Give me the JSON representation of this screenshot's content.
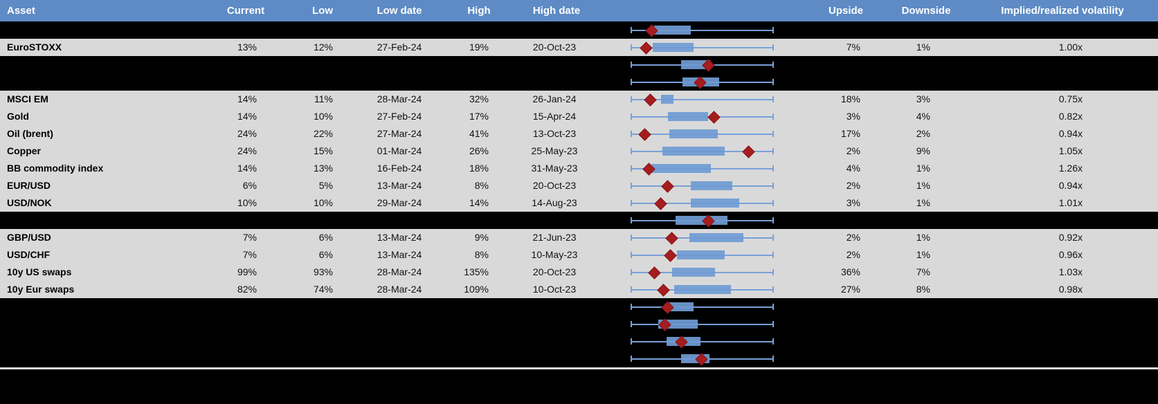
{
  "colors": {
    "header_bg": "#5E8BC5",
    "header_text": "#FFFFFF",
    "row_bg": "#D9D9D9",
    "hidden_row_bg": "#000000",
    "box_fill": "#6F9BD3",
    "whisker": "#78A1D8",
    "marker_fill": "#A51D1E",
    "marker_border": "#8A1516"
  },
  "chart_data": {
    "type": "table",
    "columns": [
      "Asset",
      "Current",
      "Low",
      "Low date",
      "High",
      "High date",
      "Upside",
      "Downside",
      "Implied/realized volatility"
    ],
    "boxplot_legend": "whisker = full range (0 to 1 normalized), box = inner range, diamond = current level marker",
    "rows": [
      {
        "hidden": true,
        "asset": "",
        "current": "",
        "low": "",
        "low_date": "",
        "high": "",
        "high_date": "",
        "upside": "",
        "downside": "",
        "vol": "",
        "box": {
          "lo": 0,
          "q1": 0.16,
          "marker": 0.14,
          "q3": 0.42,
          "hi": 1
        }
      },
      {
        "hidden": false,
        "asset": "EuroSTOXX",
        "current": "13%",
        "low": "12%",
        "low_date": "27-Feb-24",
        "high": "19%",
        "high_date": "20-Oct-23",
        "upside": "7%",
        "downside": "1%",
        "vol": "1.00x",
        "box": {
          "lo": 0,
          "q1": 0.15,
          "marker": 0.1,
          "q3": 0.44,
          "hi": 1
        }
      },
      {
        "hidden": true,
        "asset": "",
        "current": "",
        "low": "",
        "low_date": "",
        "high": "",
        "high_date": "",
        "upside": "",
        "downside": "",
        "vol": "",
        "box": {
          "lo": 0,
          "q1": 0.35,
          "marker": 0.54,
          "q3": 0.56,
          "hi": 1
        }
      },
      {
        "hidden": true,
        "asset": "",
        "current": "",
        "low": "",
        "low_date": "",
        "high": "",
        "high_date": "",
        "upside": "",
        "downside": "",
        "vol": "",
        "box": {
          "lo": 0,
          "q1": 0.36,
          "marker": 0.48,
          "q3": 0.62,
          "hi": 1
        }
      },
      {
        "hidden": false,
        "asset": "MSCI EM",
        "current": "14%",
        "low": "11%",
        "low_date": "28-Mar-24",
        "high": "32%",
        "high_date": "26-Jan-24",
        "upside": "18%",
        "downside": "3%",
        "vol": "0.75x",
        "box": {
          "lo": 0,
          "q1": 0.21,
          "marker": 0.13,
          "q3": 0.3,
          "hi": 1
        }
      },
      {
        "hidden": false,
        "asset": "Gold",
        "current": "14%",
        "low": "10%",
        "low_date": "27-Feb-24",
        "high": "17%",
        "high_date": "15-Apr-24",
        "upside": "3%",
        "downside": "4%",
        "vol": "0.82x",
        "box": {
          "lo": 0,
          "q1": 0.26,
          "marker": 0.58,
          "q3": 0.54,
          "hi": 1
        }
      },
      {
        "hidden": false,
        "asset": "Oil (brent)",
        "current": "24%",
        "low": "22%",
        "low_date": "27-Mar-24",
        "high": "41%",
        "high_date": "13-Oct-23",
        "upside": "17%",
        "downside": "2%",
        "vol": "0.94x",
        "box": {
          "lo": 0,
          "q1": 0.27,
          "marker": 0.09,
          "q3": 0.61,
          "hi": 1
        }
      },
      {
        "hidden": false,
        "asset": "Copper",
        "current": "24%",
        "low": "15%",
        "low_date": "01-Mar-24",
        "high": "26%",
        "high_date": "25-May-23",
        "upside": "2%",
        "downside": "9%",
        "vol": "1.05x",
        "box": {
          "lo": 0,
          "q1": 0.22,
          "marker": 0.82,
          "q3": 0.66,
          "hi": 1
        }
      },
      {
        "hidden": false,
        "asset": "BB commodity index",
        "current": "14%",
        "low": "13%",
        "low_date": "16-Feb-24",
        "high": "18%",
        "high_date": "31-May-23",
        "upside": "4%",
        "downside": "1%",
        "vol": "1.26x",
        "box": {
          "lo": 0,
          "q1": 0.14,
          "marker": 0.12,
          "q3": 0.56,
          "hi": 1
        }
      },
      {
        "hidden": false,
        "asset": "EUR/USD",
        "current": "6%",
        "low": "5%",
        "low_date": "13-Mar-24",
        "high": "8%",
        "high_date": "20-Oct-23",
        "upside": "2%",
        "downside": "1%",
        "vol": "0.94x",
        "box": {
          "lo": 0,
          "q1": 0.42,
          "marker": 0.25,
          "q3": 0.71,
          "hi": 1
        }
      },
      {
        "hidden": false,
        "asset": "USD/NOK",
        "current": "10%",
        "low": "10%",
        "low_date": "29-Mar-24",
        "high": "14%",
        "high_date": "14-Aug-23",
        "upside": "3%",
        "downside": "1%",
        "vol": "1.01x",
        "box": {
          "lo": 0,
          "q1": 0.42,
          "marker": 0.2,
          "q3": 0.76,
          "hi": 1
        }
      },
      {
        "hidden": true,
        "asset": "",
        "current": "",
        "low": "",
        "low_date": "",
        "high": "",
        "high_date": "",
        "upside": "",
        "downside": "",
        "vol": "",
        "box": {
          "lo": 0,
          "q1": 0.31,
          "marker": 0.54,
          "q3": 0.68,
          "hi": 1
        }
      },
      {
        "hidden": false,
        "asset": "GBP/USD",
        "current": "7%",
        "low": "6%",
        "low_date": "13-Mar-24",
        "high": "9%",
        "high_date": "21-Jun-23",
        "upside": "2%",
        "downside": "1%",
        "vol": "0.92x",
        "box": {
          "lo": 0,
          "q1": 0.41,
          "marker": 0.28,
          "q3": 0.79,
          "hi": 1
        }
      },
      {
        "hidden": false,
        "asset": "USD/CHF",
        "current": "7%",
        "low": "6%",
        "low_date": "13-Mar-24",
        "high": "8%",
        "high_date": "10-May-23",
        "upside": "2%",
        "downside": "1%",
        "vol": "0.96x",
        "box": {
          "lo": 0,
          "q1": 0.32,
          "marker": 0.27,
          "q3": 0.66,
          "hi": 1
        }
      },
      {
        "hidden": false,
        "asset": "10y US swaps",
        "current": "99%",
        "low": "93%",
        "low_date": "28-Mar-24",
        "high": "135%",
        "high_date": "20-Oct-23",
        "upside": "36%",
        "downside": "7%",
        "vol": "1.03x",
        "box": {
          "lo": 0,
          "q1": 0.29,
          "marker": 0.16,
          "q3": 0.59,
          "hi": 1
        }
      },
      {
        "hidden": false,
        "asset": "10y Eur swaps",
        "current": "82%",
        "low": "74%",
        "low_date": "28-Mar-24",
        "high": "109%",
        "high_date": "10-Oct-23",
        "upside": "27%",
        "downside": "8%",
        "vol": "0.98x",
        "box": {
          "lo": 0,
          "q1": 0.3,
          "marker": 0.22,
          "q3": 0.7,
          "hi": 1
        }
      },
      {
        "hidden": true,
        "asset": "",
        "current": "",
        "low": "",
        "low_date": "",
        "high": "",
        "high_date": "",
        "upside": "",
        "downside": "",
        "vol": "",
        "box": {
          "lo": 0,
          "q1": 0.27,
          "marker": 0.25,
          "q3": 0.44,
          "hi": 1
        }
      },
      {
        "hidden": true,
        "asset": "",
        "current": "",
        "low": "",
        "low_date": "",
        "high": "",
        "high_date": "",
        "upside": "",
        "downside": "",
        "vol": "",
        "box": {
          "lo": 0,
          "q1": 0.19,
          "marker": 0.23,
          "q3": 0.47,
          "hi": 1
        }
      },
      {
        "hidden": true,
        "asset": "",
        "current": "",
        "low": "",
        "low_date": "",
        "high": "",
        "high_date": "",
        "upside": "",
        "downside": "",
        "vol": "",
        "box": {
          "lo": 0,
          "q1": 0.25,
          "marker": 0.35,
          "q3": 0.49,
          "hi": 1
        }
      },
      {
        "hidden": true,
        "asset": "",
        "current": "",
        "low": "",
        "low_date": "",
        "high": "",
        "high_date": "",
        "upside": "",
        "downside": "",
        "vol": "",
        "box": {
          "lo": 0,
          "q1": 0.35,
          "marker": 0.49,
          "q3": 0.55,
          "hi": 1
        }
      }
    ]
  }
}
